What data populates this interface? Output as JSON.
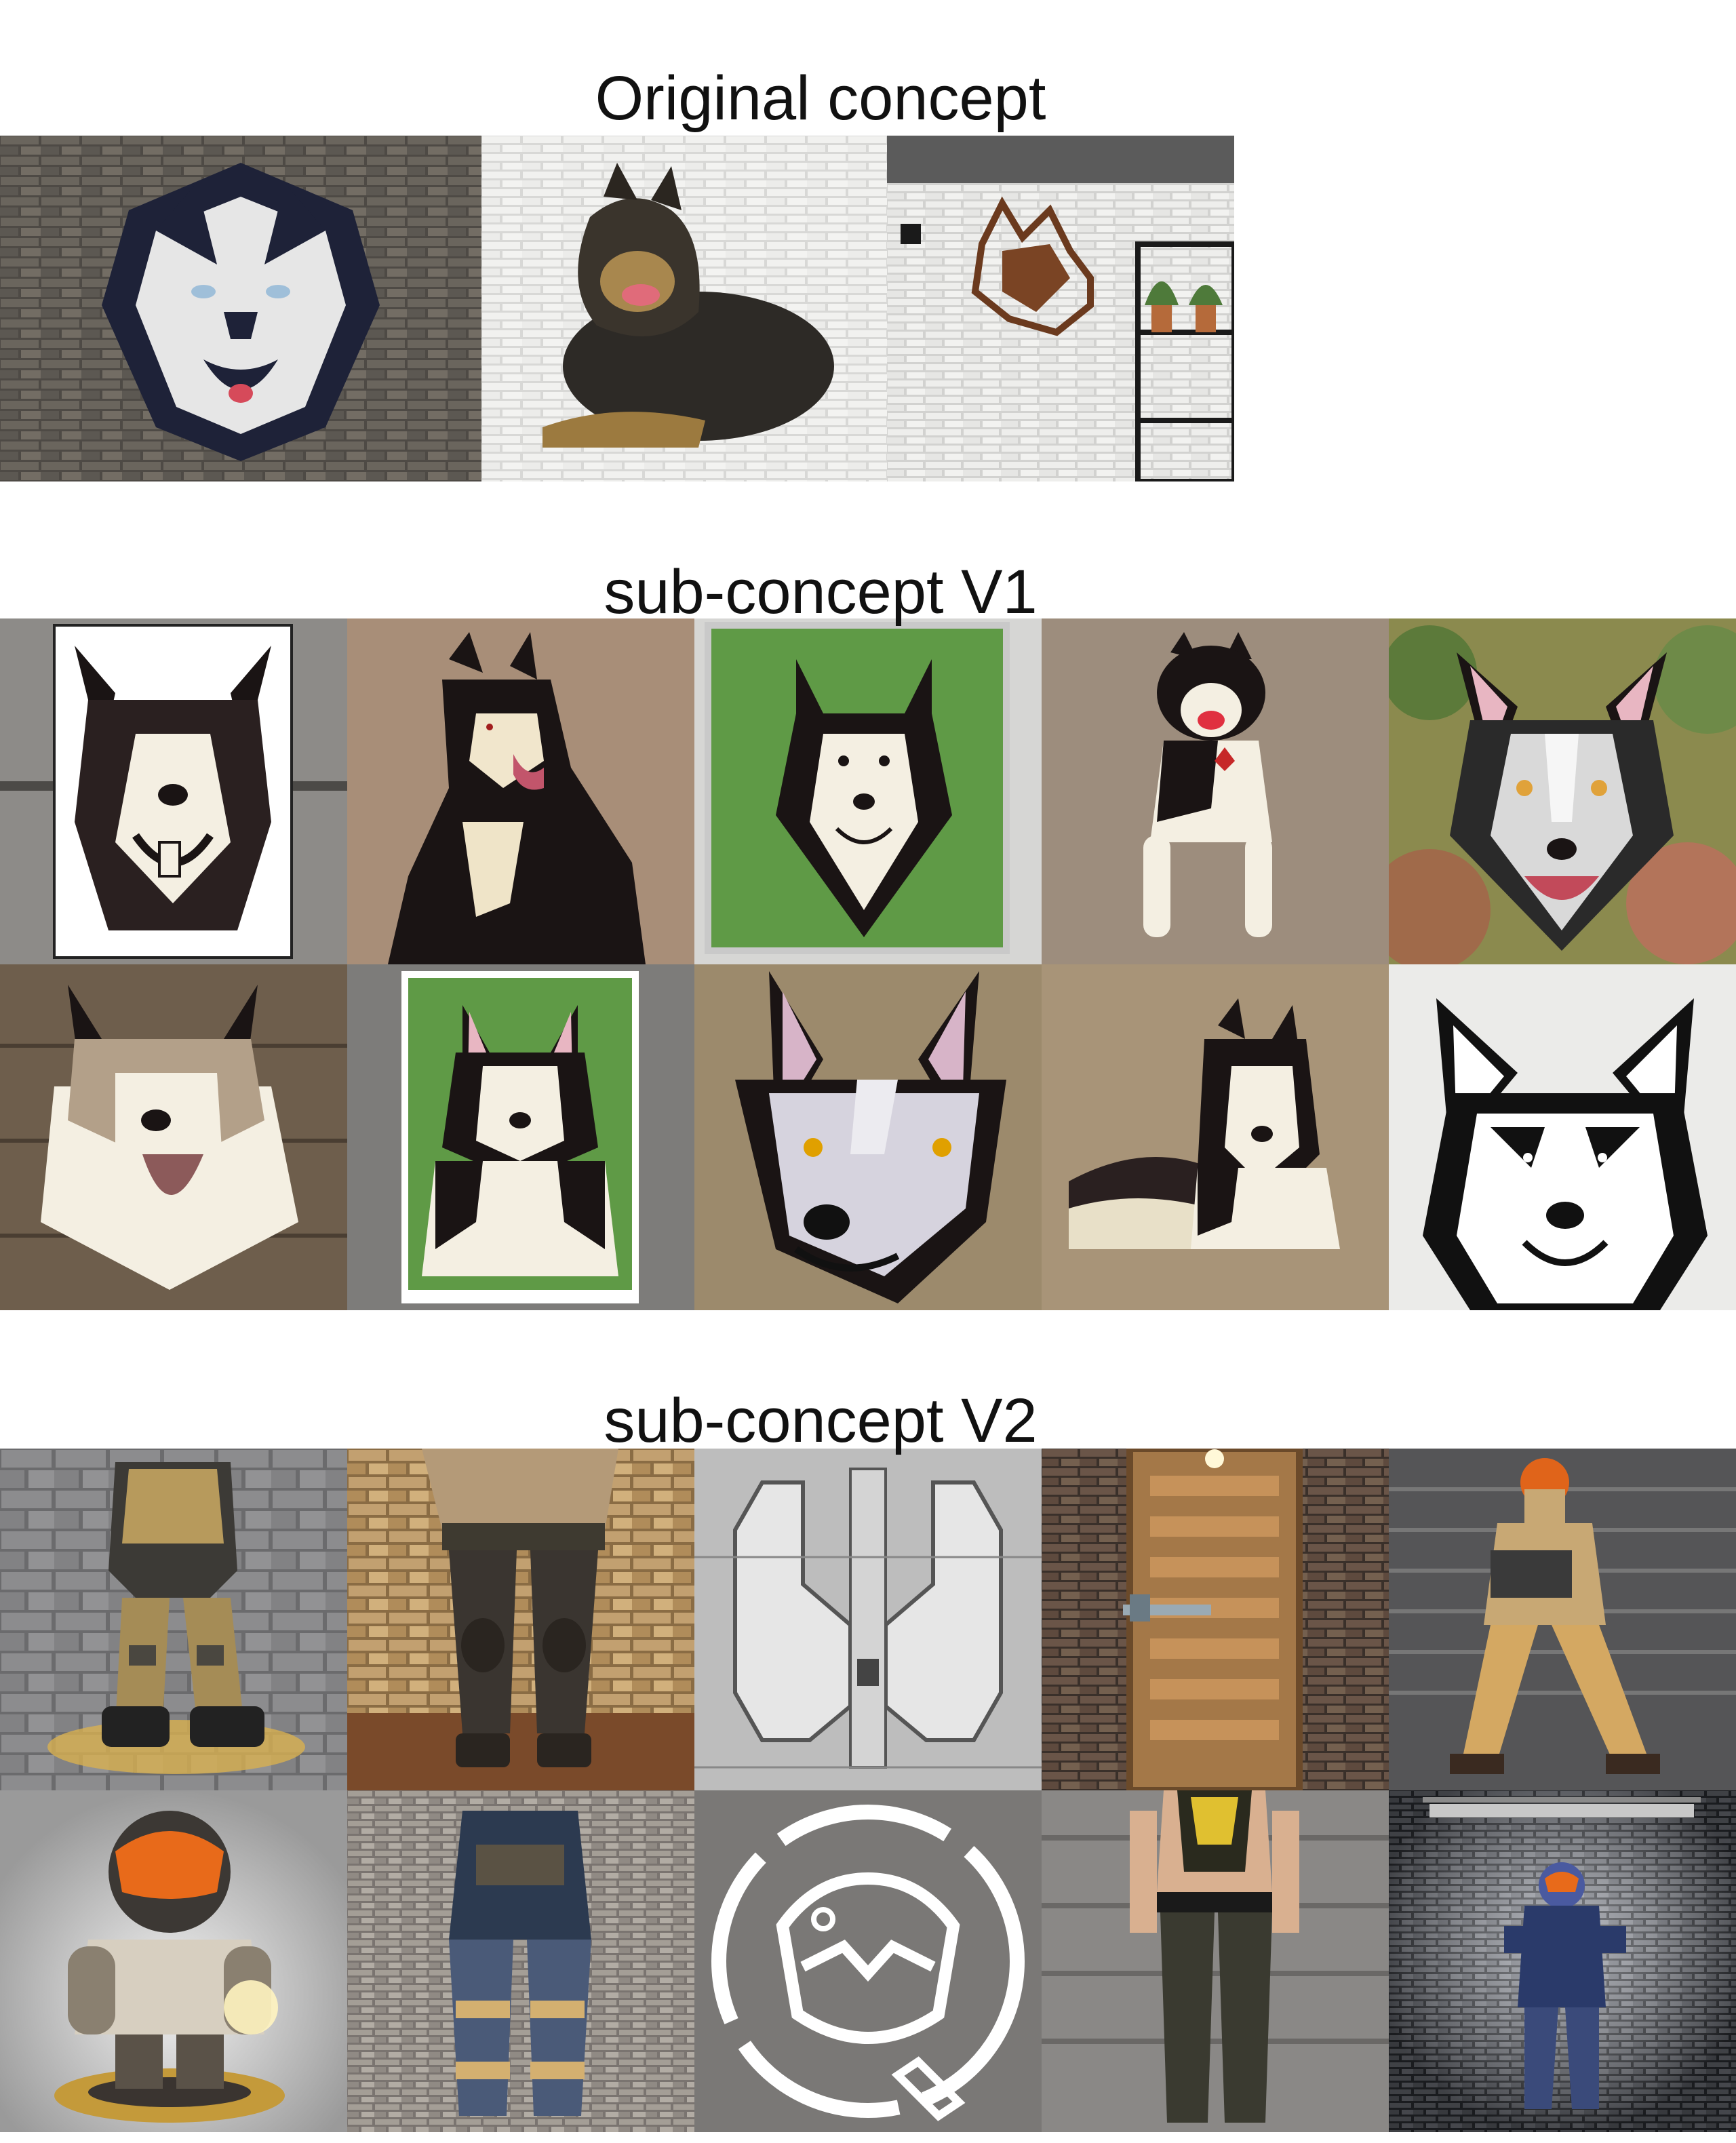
{
  "sections": [
    {
      "heading": "Original concept"
    },
    {
      "heading": "sub-concept V1"
    },
    {
      "heading": "sub-concept V2"
    }
  ],
  "colors": {
    "brick_dark": "#5a5650",
    "brick_white": "#ececea",
    "wood_brown": "#6e5e4c",
    "felt_tan": "#a88e78",
    "felt_green": "#5f9a46",
    "concrete_gray": "#8a8a8a",
    "husky_black": "#1a1414",
    "husky_cream": "#f4efe2",
    "suit_tan": "#c8a874",
    "visor_orange": "#e86a1a"
  }
}
